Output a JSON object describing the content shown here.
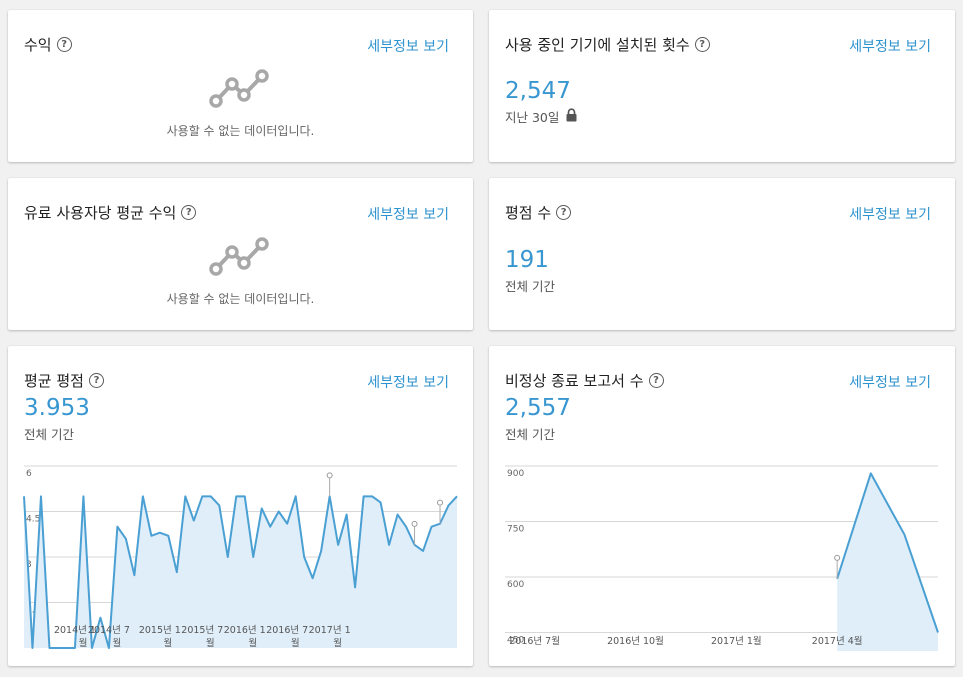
{
  "details_label": "세부정보 보기",
  "help_symbol": "?",
  "revenue": {
    "title": "수익",
    "empty_text": "사용할 수 없는 데이터입니다."
  },
  "installs": {
    "title": "사용 중인 기기에 설치된 횟수",
    "value": "2,547",
    "period": "지난 30일",
    "lock_icon": "lock-icon"
  },
  "arppu": {
    "title": "유료 사용자당 평균 수익",
    "empty_text": "사용할 수 없는 데이터입니다."
  },
  "ratings_count": {
    "title": "평점 수",
    "value": "191",
    "period": "전체 기간"
  },
  "avg_rating": {
    "title": "평균 평점",
    "value": "3.953",
    "period": "전체 기간"
  },
  "crash_reports": {
    "title": "비정상 종료 보고서 수",
    "value": "2,557",
    "period": "전체 기간"
  },
  "colors": {
    "accent": "#3896d0",
    "line": "#4a9fd3",
    "fill": "#dfeef9",
    "grid": "#d7d7d7"
  },
  "chart_data": [
    {
      "type": "area",
      "ylim": [
        0,
        6
      ],
      "y_ticks": [
        1.5,
        3,
        4.5,
        6
      ],
      "y_tick_labels": [
        "1.5",
        "3",
        "4.5",
        "6"
      ],
      "x_tick_labels": [
        "2014년 1월",
        "2014년 7월",
        "2015년 1월",
        "2015년 7월",
        "2016년 1월",
        "2016년 7월",
        "2017년 1월"
      ],
      "x_tick_positions": [
        6,
        10,
        16,
        21,
        26,
        31,
        36
      ],
      "values": [
        5,
        0,
        5,
        0,
        0,
        0,
        0,
        5,
        0,
        1,
        0,
        4,
        3.6,
        2.4,
        5,
        3.7,
        3.8,
        3.7,
        2.5,
        5,
        4.2,
        5,
        5,
        4.7,
        3,
        5,
        5,
        3,
        4.6,
        4,
        4.5,
        4.1,
        5,
        3,
        2.3,
        3.2,
        5,
        3.4,
        4.4,
        2,
        5,
        5,
        4.8,
        3.4,
        4.4,
        4,
        3.4,
        3.2,
        4,
        4.1,
        4.7,
        5
      ],
      "annotated_points": [
        36,
        46,
        49
      ]
    },
    {
      "type": "area",
      "ylim": [
        400,
        900
      ],
      "y_ticks": [
        450,
        600,
        750,
        900
      ],
      "y_tick_labels": [
        "450",
        "600",
        "750",
        "900"
      ],
      "x_tick_labels": [
        "2016년 7월",
        "2016년 10월",
        "2017년 1월",
        "2017년 4월"
      ],
      "x_tick_positions": [
        7,
        10,
        13,
        16
      ],
      "x": [
        16,
        17,
        18,
        19
      ],
      "values": [
        595,
        880,
        715,
        450
      ],
      "x_range": [
        6,
        19
      ],
      "annotated_points": [
        0
      ]
    }
  ]
}
